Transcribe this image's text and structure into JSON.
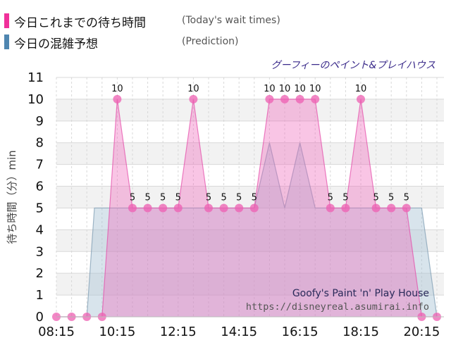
{
  "legend": {
    "today": {
      "label": "今日これまでの待ち時間",
      "sub": "(Today's wait times)",
      "color": "#f0309a"
    },
    "prediction": {
      "label": "今日の混雑予想",
      "sub": "(Prediction)",
      "color": "#4f86b0"
    }
  },
  "attraction": {
    "name_ja": "グーフィーのペイント&プレイハウス",
    "name_en": "Goofy's Paint 'n' Play House",
    "url": "https://disneyreal.asumirai.info"
  },
  "chart_data": {
    "type": "area",
    "xlabel": "",
    "ylabel": "待ち時間（分）min",
    "ylim": [
      0,
      11
    ],
    "y_ticks": [
      0,
      1,
      2,
      3,
      4,
      5,
      6,
      7,
      8,
      9,
      10,
      11
    ],
    "x_tick_labels": [
      "08:15",
      "10:15",
      "12:15",
      "14:15",
      "16:15",
      "18:15",
      "20:15"
    ],
    "x_range": [
      "08:15",
      "20:45"
    ],
    "grid": true,
    "series": [
      {
        "name": "今日これまでの待ち時間",
        "color": "#f0309a",
        "x": [
          "08:15",
          "08:45",
          "09:15",
          "09:45",
          "10:15",
          "10:45",
          "11:15",
          "11:45",
          "12:15",
          "12:45",
          "13:15",
          "13:45",
          "14:15",
          "14:45",
          "15:15",
          "15:45",
          "16:15",
          "16:45",
          "17:15",
          "17:45",
          "18:15",
          "18:45",
          "19:15",
          "19:45",
          "20:15",
          "20:45"
        ],
        "values": [
          0,
          0,
          0,
          0,
          10,
          5,
          5,
          5,
          5,
          10,
          5,
          5,
          5,
          5,
          10,
          10,
          10,
          10,
          5,
          5,
          10,
          5,
          5,
          5,
          0,
          0
        ],
        "data_labels": [
          "",
          "",
          "",
          "",
          "10",
          "5",
          "5",
          "5",
          "5",
          "10",
          "5",
          "5",
          "5",
          "5",
          "10",
          "10",
          "10",
          "10",
          "5",
          "5",
          "10",
          "5",
          "5",
          "5",
          "",
          ""
        ]
      },
      {
        "name": "今日の混雑予想",
        "color": "#4f86b0",
        "x": [
          "08:15",
          "08:45",
          "09:15",
          "09:30",
          "09:45",
          "10:15",
          "10:45",
          "11:15",
          "11:45",
          "12:15",
          "12:45",
          "13:15",
          "13:45",
          "14:15",
          "14:45",
          "15:15",
          "15:45",
          "16:15",
          "16:45",
          "17:15",
          "17:45",
          "18:15",
          "18:45",
          "19:15",
          "19:45",
          "20:15",
          "20:45"
        ],
        "values": [
          0,
          0,
          0,
          5,
          5,
          5,
          5,
          5,
          5,
          5,
          5,
          5,
          5,
          5,
          5,
          8,
          5,
          8,
          5,
          5,
          5,
          5,
          5,
          5,
          5,
          5,
          0
        ]
      }
    ]
  }
}
